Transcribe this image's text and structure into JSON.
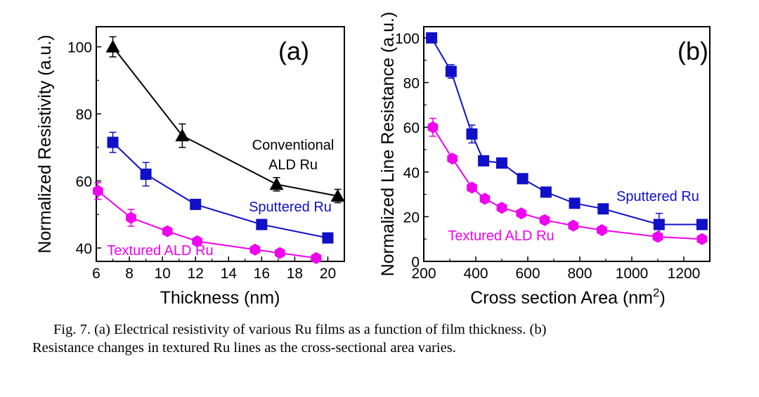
{
  "colors": {
    "conventional": "#000000",
    "sputtered": "#1010C8",
    "textured": "#F000F0",
    "axis": "#000000"
  },
  "chart_data": [
    {
      "type": "line",
      "panel_label": "(a)",
      "xlabel": "Thickness (nm)",
      "ylabel": "Normalized Resistivity (a.u.)",
      "xlim": [
        6,
        21
      ],
      "ylim": [
        36,
        106
      ],
      "xticks": [
        6,
        8,
        10,
        12,
        14,
        16,
        18,
        20
      ],
      "yticks": [
        40,
        60,
        80,
        100
      ],
      "series": [
        {
          "name": "Conventional ALD Ru",
          "label_lines": [
            "Conventional",
            "ALD Ru"
          ],
          "color_key": "conventional",
          "marker": "triangle",
          "x": [
            7,
            11.2,
            16.9,
            20.6
          ],
          "y": [
            100,
            73.5,
            59,
            55.5
          ],
          "err": [
            3,
            3.5,
            2,
            2
          ]
        },
        {
          "name": "Sputtered Ru",
          "label_lines": [
            "Sputtered Ru"
          ],
          "color_key": "sputtered",
          "marker": "square",
          "x": [
            7,
            9,
            12,
            16,
            20
          ],
          "y": [
            71.5,
            62,
            53,
            47,
            43
          ],
          "err": [
            3,
            3.5,
            1,
            1,
            1
          ]
        },
        {
          "name": "Textured ALD Ru",
          "label_lines": [
            "Textured ALD Ru"
          ],
          "color_key": "textured",
          "marker": "hexagon",
          "x": [
            6.1,
            8.1,
            10.3,
            12.1,
            15.6,
            17.1,
            19.3
          ],
          "y": [
            57,
            49,
            45,
            42,
            39.5,
            38.5,
            37
          ],
          "err": [
            2.5,
            2.5,
            1,
            1,
            1,
            1,
            1
          ]
        }
      ]
    },
    {
      "type": "line",
      "panel_label": "(b)",
      "xlabel": "Cross section Area (nm",
      "xlabel_sup": "2",
      "xlabel_end": ")",
      "ylabel": "Normalized Line Resistance (a.u.)",
      "xlim": [
        200,
        1300
      ],
      "ylim": [
        0,
        105
      ],
      "xticks": [
        200,
        400,
        600,
        800,
        1000,
        1200
      ],
      "yticks": [
        0,
        20,
        40,
        60,
        80,
        100
      ],
      "series": [
        {
          "name": "Sputtered Ru",
          "label_lines": [
            "Sputtered Ru"
          ],
          "color_key": "sputtered",
          "marker": "square",
          "x": [
            230,
            305,
            385,
            430,
            500,
            580,
            670,
            780,
            890,
            1105,
            1270
          ],
          "y": [
            100,
            85,
            57,
            45,
            44,
            37,
            31,
            26,
            23.5,
            16.5,
            16.5
          ],
          "err": [
            1,
            3,
            4,
            1,
            2,
            1,
            1,
            1,
            1,
            5,
            1
          ]
        },
        {
          "name": "Textured ALD Ru",
          "label_lines": [
            "Textured ALD Ru"
          ],
          "color_key": "textured",
          "marker": "hexagon",
          "x": [
            235,
            310,
            385,
            435,
            500,
            575,
            665,
            775,
            885,
            1100,
            1270
          ],
          "y": [
            60,
            46,
            33,
            28,
            24,
            21.5,
            18.5,
            16,
            14,
            11,
            10
          ],
          "err": [
            4,
            1,
            1,
            1,
            1,
            1,
            1,
            1,
            1,
            1,
            1
          ]
        }
      ]
    }
  ],
  "caption": {
    "line1": "Fig. 7. (a) Electrical resistivity of various Ru films as a function of film thickness. (b)",
    "line2": "Resistance changes in textured Ru lines as the cross-sectional area varies."
  }
}
